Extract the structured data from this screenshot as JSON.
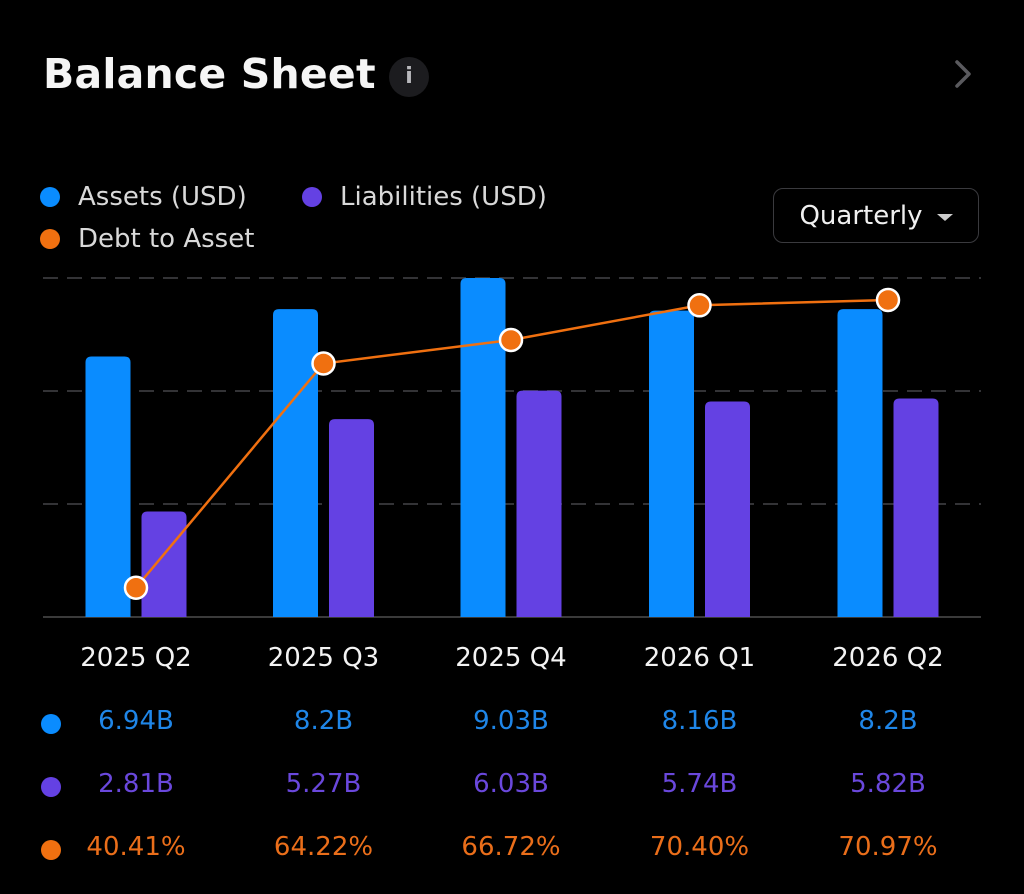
{
  "header": {
    "title": "Balance Sheet",
    "info_icon": "info-icon",
    "chevron_icon": "chevron-right-icon"
  },
  "period_select": {
    "selected": "Quarterly",
    "icon": "caret-down-icon"
  },
  "colors": {
    "assets": "#0a8cff",
    "liabilities": "#6441e3",
    "debt_to_asset": "#f07010",
    "assets_text": "#1f86e8",
    "liabilities_text": "#6a48dc",
    "debt_text": "#ea6e1a",
    "grid": "#333336",
    "axis": "#3a3a3a"
  },
  "chart_data": {
    "type": "bar",
    "title": "Balance Sheet",
    "categories": [
      "2025 Q2",
      "2025 Q3",
      "2025 Q4",
      "2026 Q1",
      "2026 Q2"
    ],
    "series": [
      {
        "name": "Assets (USD)",
        "type": "bar",
        "values": [
          6.94,
          8.2,
          9.03,
          8.16,
          8.2
        ],
        "labels": [
          "6.94B",
          "8.2B",
          "9.03B",
          "8.16B",
          "8.2B"
        ],
        "unit": "B"
      },
      {
        "name": "Liabilities (USD)",
        "type": "bar",
        "values": [
          2.81,
          5.27,
          6.03,
          5.74,
          5.82
        ],
        "labels": [
          "2.81B",
          "5.27B",
          "6.03B",
          "5.74B",
          "5.82B"
        ],
        "unit": "B"
      },
      {
        "name": "Debt to Asset",
        "type": "line",
        "values": [
          40.41,
          64.22,
          66.72,
          70.4,
          70.97
        ],
        "labels": [
          "40.41%",
          "64.22%",
          "66.72%",
          "70.40%",
          "70.97%"
        ],
        "unit": "%"
      }
    ],
    "ylim_bars": [
      0,
      9.03
    ],
    "ylim_line": [
      37.3,
      73.3
    ],
    "grid": true,
    "gridline_count": 3,
    "legend_position": "top-left",
    "xlabel": "",
    "ylabel": ""
  }
}
